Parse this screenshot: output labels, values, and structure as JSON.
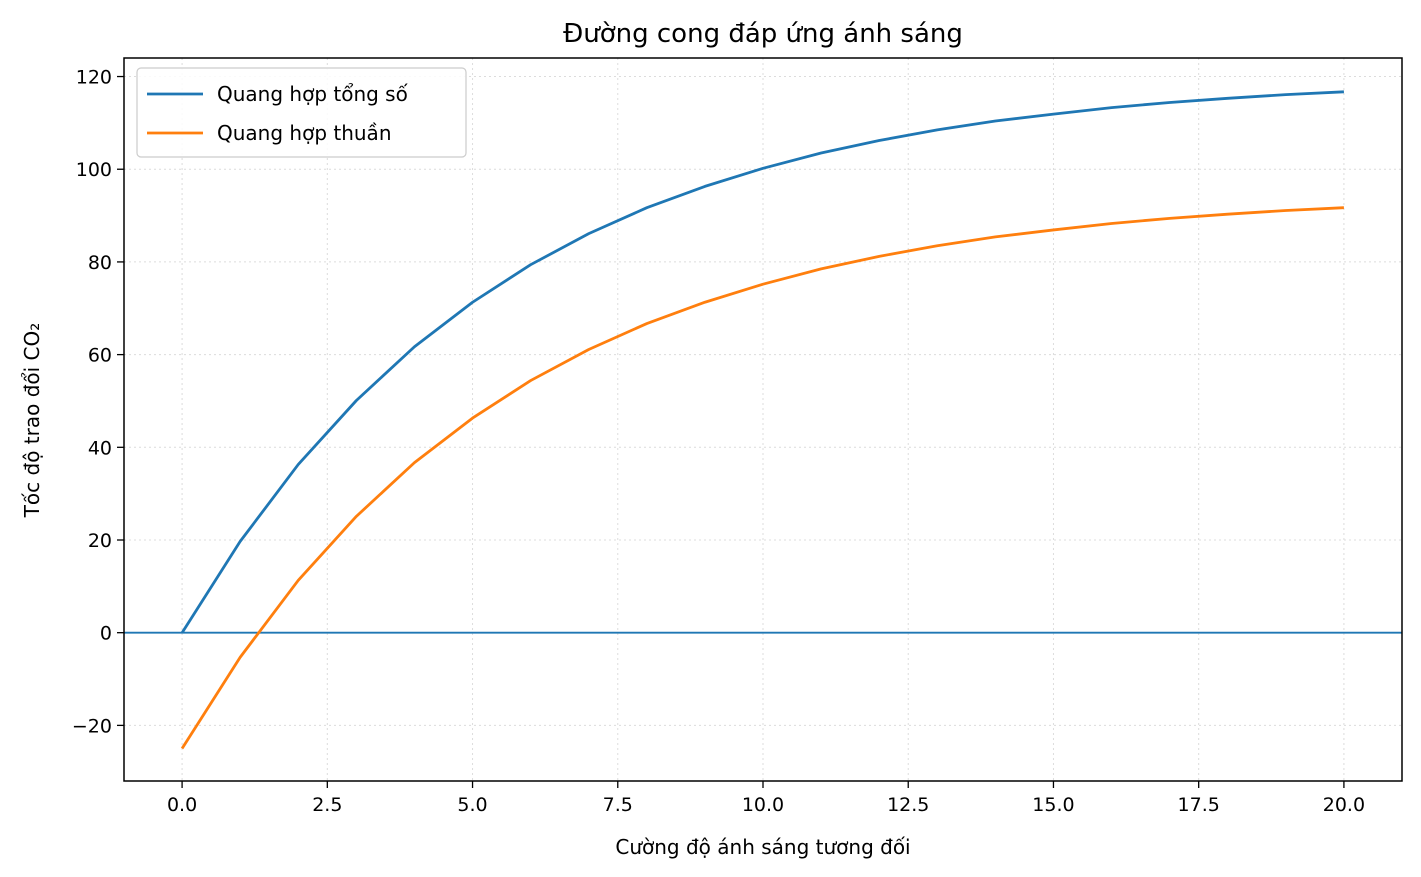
{
  "chart_data": {
    "type": "line",
    "title": "Đường cong đáp ứng ánh sáng",
    "xlabel": "Cường độ ánh sáng tương đối",
    "ylabel": "Tốc độ trao đổi CO₂",
    "xlim": [
      -1,
      21
    ],
    "ylim": [
      -32,
      124
    ],
    "xticks": [
      0,
      2.5,
      5,
      7.5,
      10,
      12.5,
      15,
      17.5,
      20
    ],
    "xtick_labels": [
      "0.0",
      "2.5",
      "5.0",
      "7.5",
      "10.0",
      "12.5",
      "15.0",
      "17.5",
      "20.0"
    ],
    "yticks": [
      -20,
      0,
      20,
      40,
      60,
      80,
      100,
      120
    ],
    "ytick_labels": [
      "−20",
      "0",
      "20",
      "40",
      "60",
      "80",
      "100",
      "120"
    ],
    "grid": true,
    "legend_position": "top-left",
    "reference_line": {
      "y": 0,
      "color": "#1f77b4"
    },
    "x": [
      0,
      1,
      2,
      3,
      4,
      5,
      6,
      7,
      8,
      9,
      10,
      11,
      12,
      13,
      14,
      15,
      16,
      17,
      18,
      19,
      20
    ],
    "series": [
      {
        "name": "Quang hợp tổng số",
        "color": "#1f77b4",
        "values": [
          0,
          19.7,
          36.3,
          50.1,
          61.7,
          71.3,
          79.4,
          86.1,
          91.7,
          96.3,
          100.2,
          103.5,
          106.2,
          108.5,
          110.4,
          111.9,
          113.3,
          114.4,
          115.3,
          116.1,
          116.7
        ]
      },
      {
        "name": "Quang hợp thuần",
        "color": "#ff7f0e",
        "values": [
          -25,
          -5.3,
          11.3,
          25.1,
          36.7,
          46.3,
          54.4,
          61.1,
          66.7,
          71.3,
          75.2,
          78.5,
          81.2,
          83.5,
          85.4,
          86.9,
          88.3,
          89.4,
          90.3,
          91.1,
          91.7
        ]
      }
    ]
  }
}
